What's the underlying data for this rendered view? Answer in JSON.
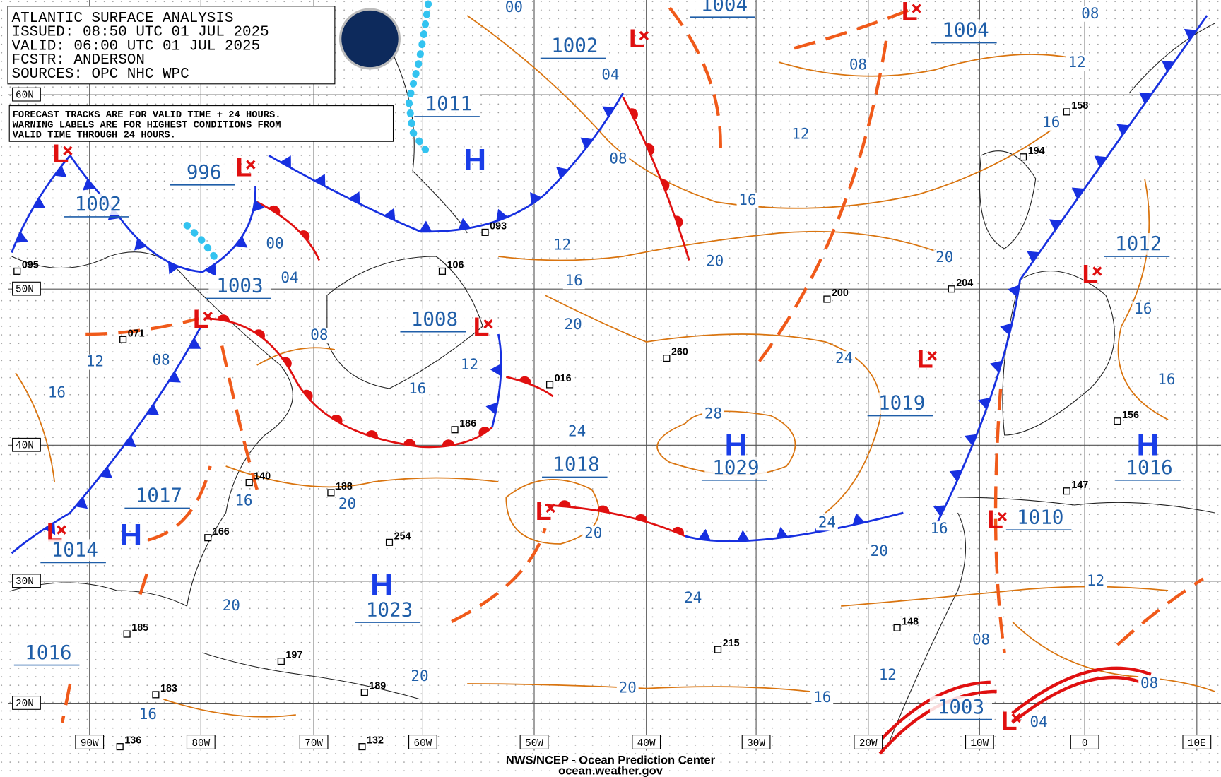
{
  "header": {
    "lines": [
      "ATLANTIC SURFACE ANALYSIS",
      "ISSUED: 08:50 UTC 01 JUL 2025",
      "VALID:  06:00 UTC 01 JUL 2025",
      "FCSTR:  ANDERSON",
      "SOURCES: OPC NHC WPC"
    ]
  },
  "note": {
    "lines": [
      "FORECAST TRACKS ARE FOR VALID TIME + 24 HOURS.",
      "WARNING LABELS ARE FOR HIGHEST CONDITIONS FROM",
      "VALID TIME THROUGH 24 HOURS."
    ]
  },
  "latitudes": [
    "60N",
    "50N",
    "40N",
    "30N",
    "20N"
  ],
  "longitudes": [
    "90W",
    "80W",
    "70W",
    "60W",
    "50W",
    "40W",
    "30W",
    "20W",
    "10W",
    "0",
    "10E"
  ],
  "centers": [
    {
      "symbol": "L",
      "pressure": "1002"
    },
    {
      "symbol": "H",
      "pressure": "1011"
    },
    {
      "symbol": "L",
      "pressure": "1002"
    },
    {
      "symbol": "L",
      "pressure": "996"
    },
    {
      "symbol": "L",
      "pressure": "1003"
    },
    {
      "symbol": "L",
      "pressure": "1008"
    },
    {
      "symbol": "L",
      "pressure": "1018"
    },
    {
      "symbol": "H",
      "pressure": "1029"
    },
    {
      "symbol": "H",
      "pressure": "1017"
    },
    {
      "symbol": "L",
      "pressure": "1014"
    },
    {
      "symbol": "H",
      "pressure": "1023"
    },
    {
      "symbol": "L",
      "pressure": "1019"
    },
    {
      "symbol": "L",
      "pressure": "1010"
    },
    {
      "symbol": "L",
      "pressure": "1012"
    },
    {
      "symbol": "L",
      "pressure": "1004"
    },
    {
      "symbol": "H",
      "pressure": "1016"
    },
    {
      "symbol": "L",
      "pressure": "1003"
    }
  ],
  "pressure_labels": [
    "1004",
    "1016"
  ],
  "isobar_labels": [
    "00",
    "08",
    "12",
    "08",
    "16",
    "12",
    "08",
    "16",
    "12",
    "20",
    "16",
    "04",
    "00",
    "04",
    "08",
    "12",
    "08",
    "16",
    "12",
    "16",
    "20",
    "24",
    "28",
    "24",
    "20",
    "16",
    "16",
    "20",
    "16",
    "20",
    "24",
    "20",
    "16",
    "12",
    "24",
    "20",
    "20",
    "20",
    "16",
    "16",
    "12",
    "08",
    "08",
    "04"
  ],
  "stations": [
    "095",
    "106",
    "093",
    "200",
    "260",
    "186",
    "188",
    "254",
    "185",
    "166",
    "204",
    "158",
    "194",
    "156",
    "147",
    "148",
    "215",
    "197",
    "189",
    "132",
    "136",
    "183",
    "140",
    "071",
    "016"
  ],
  "footer": {
    "lines": [
      "NWS/NCEP - Ocean Prediction Center",
      "ocean.weather.gov"
    ]
  }
}
